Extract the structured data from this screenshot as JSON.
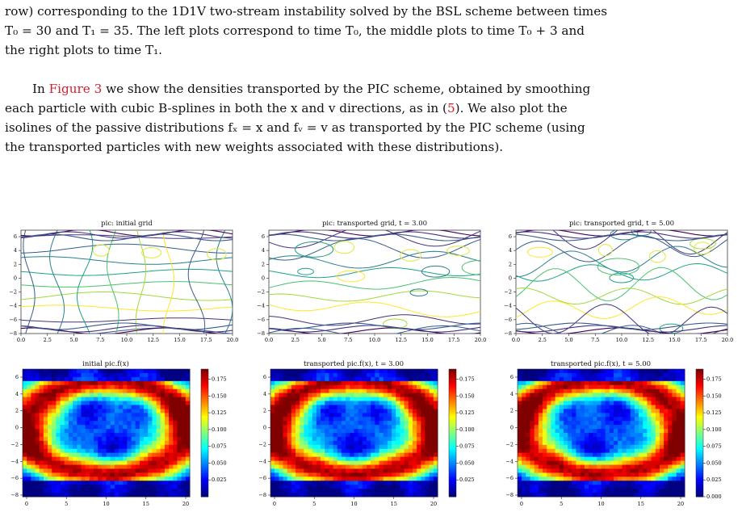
{
  "text": {
    "line1": "row) corresponding to the 1D1V two-stream instability solved by the BSL scheme between times",
    "line2": "T₀ = 30 and T₁ = 35. The left plots correspond to time T₀, the middle plots to time T₀ + 3 and",
    "line3": "the right plots to time T₁.",
    "p2a_pre": "In ",
    "p2a_ref": "Figure 3",
    "p2a_post": " we show the densities transported by the PIC scheme, obtained by smoothing",
    "p2b_pre": "each particle with cubic B-splines in both the x and v directions, as in (",
    "p2b_ref": "5",
    "p2b_post": "). We also plot the",
    "p2c": "isolines of the passive distributions fₓ = x and fᵥ = v as transported by the PIC scheme (using",
    "p2d": "the transported particles with new weights associated with these distributions)."
  },
  "colors": {
    "ref": "#d21f2f"
  },
  "figures": {
    "top": [
      {
        "title": "pic: initial grid",
        "xticks": [
          "0.0",
          "2.5",
          "5.0",
          "7.5",
          "10.0",
          "12.5",
          "15.0",
          "17.5",
          "20.0"
        ],
        "yticks": [
          "6",
          "4",
          "2",
          "0",
          "−2",
          "−4",
          "−6",
          "−8"
        ]
      },
      {
        "title": "pic: transported grid, t = 3.00",
        "xticks": [
          "0.0",
          "2.5",
          "5.0",
          "7.5",
          "10.0",
          "12.5",
          "15.0",
          "17.5",
          "20.0"
        ],
        "yticks": [
          "6",
          "4",
          "2",
          "0",
          "−2",
          "−4",
          "−6",
          "−8"
        ]
      },
      {
        "title": "pic: transported grid, t = 5.00",
        "xticks": [
          "0.0",
          "2.5",
          "5.0",
          "7.5",
          "10.0",
          "12.5",
          "15.0",
          "17.5",
          "20.0"
        ],
        "yticks": [
          "6",
          "4",
          "2",
          "0",
          "−2",
          "−4",
          "−6",
          "−8"
        ]
      }
    ],
    "bottom": [
      {
        "title": "initial pic.f(x)",
        "xticks": [
          "0",
          "5",
          "10",
          "15",
          "20"
        ],
        "yticks": [
          "6",
          "4",
          "2",
          "0",
          "−2",
          "−4",
          "−6",
          "−8"
        ],
        "cbar": [
          "0.175",
          "0.150",
          "0.125",
          "0.100",
          "0.075",
          "0.050",
          "0.025"
        ]
      },
      {
        "title": "transported pic.f(x), t = 3.00",
        "xticks": [
          "0",
          "5",
          "10",
          "15",
          "20"
        ],
        "yticks": [
          "6",
          "4",
          "2",
          "0",
          "−2",
          "−4",
          "−6",
          "−8"
        ],
        "cbar": [
          "0.175",
          "0.150",
          "0.125",
          "0.100",
          "0.075",
          "0.050",
          "0.025"
        ]
      },
      {
        "title": "transported pic.f(x), t = 5.00",
        "xticks": [
          "0",
          "5",
          "10",
          "15",
          "20"
        ],
        "yticks": [
          "6",
          "4",
          "2",
          "0",
          "−2",
          "−4",
          "−6",
          "−8"
        ],
        "cbar": [
          "0.175",
          "0.150",
          "0.125",
          "0.100",
          "0.075",
          "0.050",
          "0.025",
          "0.000"
        ]
      }
    ]
  }
}
